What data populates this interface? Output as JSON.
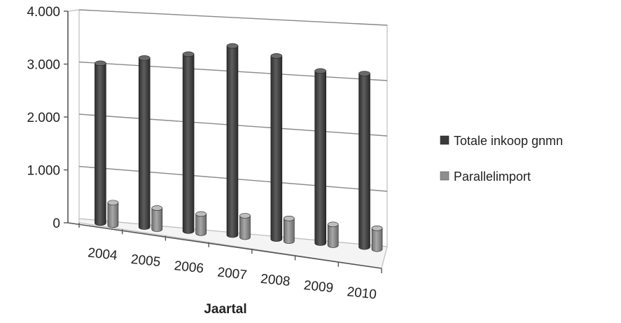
{
  "chart_data": {
    "type": "bar",
    "title": "",
    "xlabel": "Jaartal",
    "ylabel": "",
    "categories": [
      "2004",
      "2005",
      "2006",
      "2007",
      "2008",
      "2009",
      "2010"
    ],
    "y_ticks": [
      "0",
      "1.000",
      "2.000",
      "3.000",
      "4.000"
    ],
    "ylim": [
      0,
      4000
    ],
    "grid": true,
    "legend_position": "right",
    "series": [
      {
        "name": "Totale inkoop gnmn",
        "values": [
          3050,
          3200,
          3320,
          3520,
          3380,
          3150,
          3150
        ],
        "color": "#4a4a4a"
      },
      {
        "name": "Parallelimport",
        "values": [
          430,
          400,
          360,
          400,
          420,
          380,
          380
        ],
        "color": "#8e8e8e"
      }
    ]
  }
}
